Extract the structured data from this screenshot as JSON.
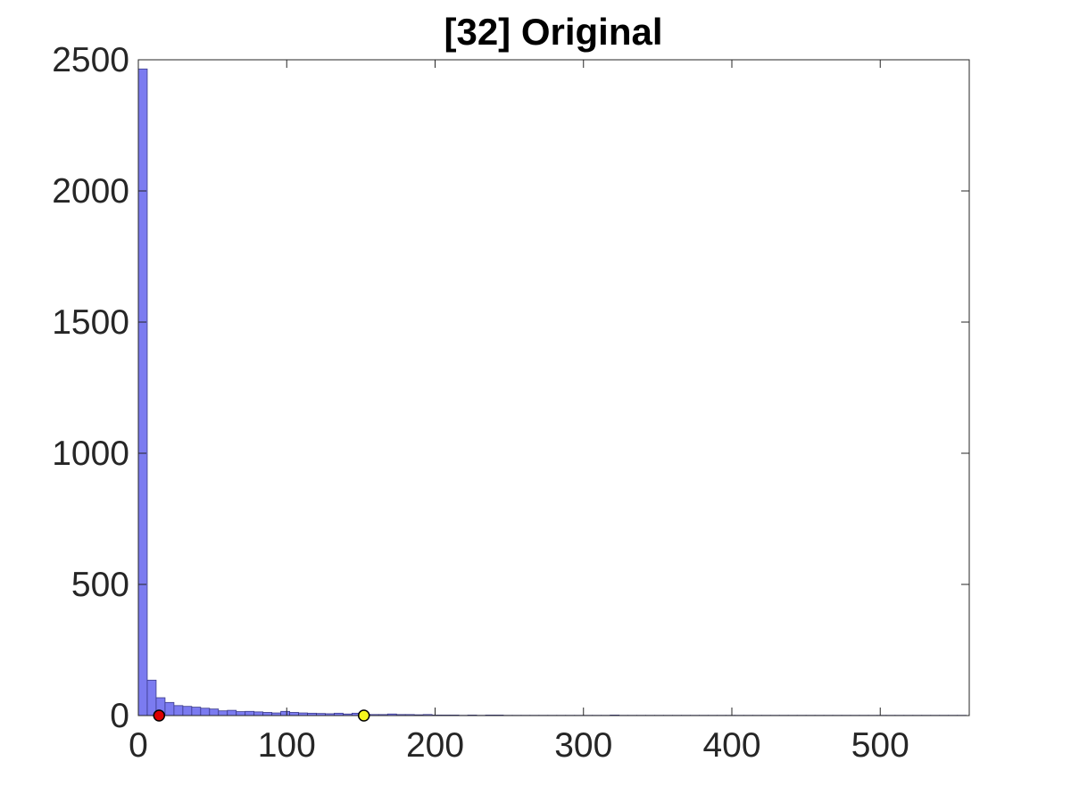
{
  "chart_data": {
    "type": "bar",
    "title": "[32] Original",
    "xlabel": "",
    "ylabel": "",
    "xlim": [
      0,
      560
    ],
    "ylim": [
      0,
      2500
    ],
    "xticks": [
      0,
      100,
      200,
      300,
      400,
      500
    ],
    "yticks": [
      0,
      500,
      1000,
      1500,
      2000,
      2500
    ],
    "grid": false,
    "bin_width": 6,
    "bin_start": 0,
    "counts": [
      2465,
      135,
      68,
      50,
      38,
      35,
      32,
      28,
      25,
      18,
      20,
      15,
      16,
      14,
      12,
      10,
      16,
      12,
      10,
      9,
      8,
      7,
      9,
      6,
      9,
      5,
      4,
      4,
      6,
      4,
      4,
      3,
      4,
      2,
      2,
      2,
      1,
      2,
      1,
      2,
      2,
      1,
      1,
      1,
      1,
      1,
      1,
      1,
      1,
      1,
      1,
      1,
      1,
      2,
      1,
      1,
      1,
      1,
      1,
      1,
      1,
      1,
      1,
      1,
      1,
      1,
      1,
      1,
      1,
      1,
      1,
      1,
      1,
      1,
      1,
      1,
      1,
      1,
      1,
      1,
      1,
      1,
      1,
      1,
      1,
      1,
      1,
      1,
      1,
      1,
      1,
      1,
      1
    ],
    "bar_color": "#7b7bf0",
    "bar_edge_color": "#3a3a8a",
    "markers": [
      {
        "x": 14,
        "y": 0,
        "color": "#dd0000"
      },
      {
        "x": 152,
        "y": 0,
        "color": "#f5f51e"
      }
    ]
  }
}
